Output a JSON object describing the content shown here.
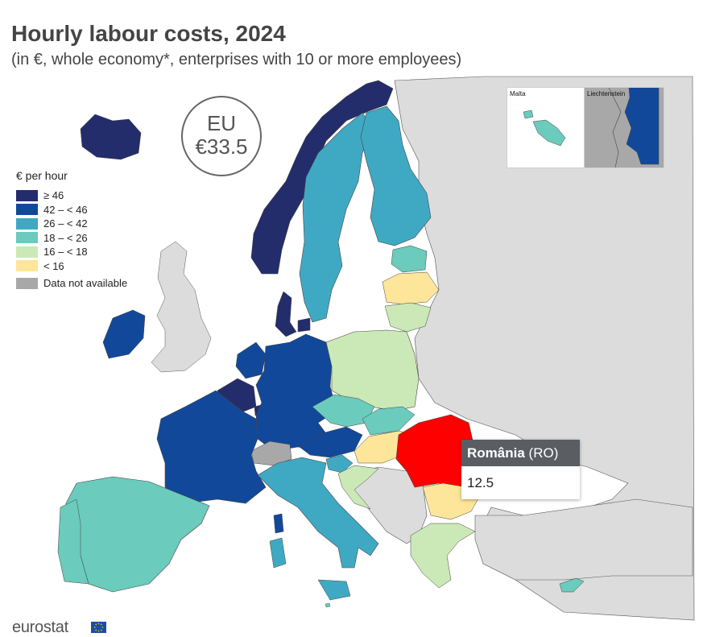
{
  "title": "Hourly labour costs, 2024",
  "subtitle": "(in €, whole economy*, enterprises with 10 or more employees)",
  "eu_badge": {
    "line1": "EU",
    "line2": "€33.5"
  },
  "legend": {
    "title": "€ per hour",
    "classes": [
      {
        "label": "≥ 46",
        "color": "#232d6b"
      },
      {
        "label": "42 – < 46",
        "color": "#12489a"
      },
      {
        "label": "26 – < 42",
        "color": "#3fa9c4"
      },
      {
        "label": "18 – < 26",
        "color": "#6bcbbc"
      },
      {
        "label": "16 – < 18",
        "color": "#cbe9b6"
      },
      {
        "label": "< 16",
        "color": "#fde699"
      }
    ],
    "na": {
      "label": "Data not available",
      "color": "#a8a8a8"
    }
  },
  "insets": {
    "malta": "Malta",
    "liechtenstein": "Liechtenstein"
  },
  "tooltip": {
    "country": "România",
    "code": "(RO)",
    "value": "12.5",
    "highlight_color": "#ff0000"
  },
  "footer": {
    "logo": "eurostat"
  },
  "colors": {
    "non_eu": "#dddddd",
    "sea": "#ffffff",
    "border": "#444444"
  }
}
